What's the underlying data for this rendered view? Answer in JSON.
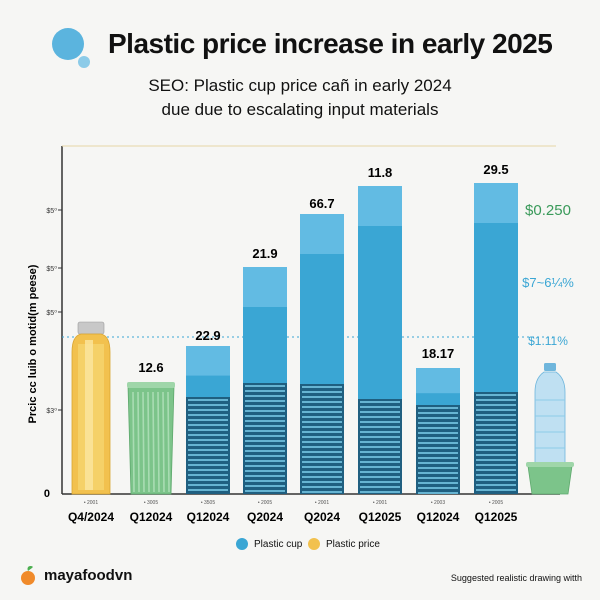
{
  "header": {
    "title": "Plastic price increase in early 2025",
    "subtitle_line1": "SEO: Plastic cup price cañ in early 2024",
    "subtitle_line2": "due due to escalating input materials"
  },
  "chart_data": {
    "type": "bar",
    "title": "Plastic price increase in early 2025",
    "ylabel": "Prcic cc luib o motid(m peese)",
    "y_ticks": [
      "$5⁰",
      "$5⁰",
      "$5⁰",
      "$3⁰"
    ],
    "y_origin_label": "0",
    "categories": [
      "Q4/2024",
      "Q12024",
      "Q12024",
      "Q2024",
      "Q2024",
      "Q12025",
      "Q12024",
      "Q12025"
    ],
    "small_labels": [
      "• 2001",
      "• 3005",
      "• 3505",
      "• 2005",
      "• 2001",
      "• 2001",
      "• 2003",
      "• 2005"
    ],
    "series": [
      {
        "name": "Plastic cup",
        "color": "#3aa6d4",
        "values": [
          null,
          null,
          22.9,
          21.9,
          66.7,
          11.8,
          18.17,
          29.5
        ]
      },
      {
        "name": "Plastic price",
        "color": "#f2c14e",
        "values": [
          null,
          12.6,
          null,
          null,
          null,
          null,
          null,
          null
        ]
      }
    ],
    "value_labels": [
      "",
      "12.6",
      "22.9",
      "21.9",
      "66.7",
      "11.8",
      "18.17",
      "29.5"
    ],
    "right_annotations": [
      {
        "text": "$0.250",
        "color": "#3a9a5a"
      },
      {
        "text": "$7~6¼%",
        "color": "#3aa6d4"
      },
      {
        "text": "$1.11%",
        "color": "#3aa6d4"
      }
    ],
    "colors": {
      "cup": "#3aa6d4",
      "price": "#f2c14e",
      "green": "#7cc48a",
      "green_text": "#3a9a5a"
    }
  },
  "legend": {
    "items": [
      {
        "label": "Plastic cup",
        "color": "#3aa6d4"
      },
      {
        "label": "Plastic price",
        "color": "#f2c14e"
      }
    ]
  },
  "brand": {
    "name": "mayafoodvn"
  },
  "footer": {
    "note": "Suggested realistic drawing witth"
  }
}
